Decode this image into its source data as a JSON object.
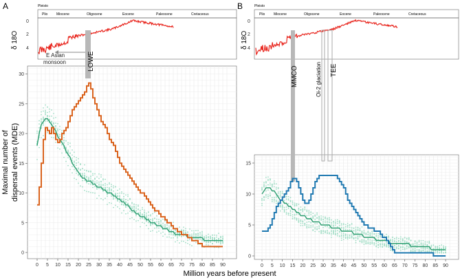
{
  "figure": {
    "panel_a_label": "A",
    "panel_b_label": "B",
    "y_label_line1": "Maximal number of",
    "y_label_line2": "dispersal events (MDE)",
    "x_label": "Million years before present",
    "d18o_label": "δ 18O",
    "epochs": [
      "Pleisto",
      "Plio",
      "Miocene",
      "Oligocene",
      "Eocene",
      "Paleocene",
      "Cretaceous"
    ],
    "annotations_a": {
      "monsoon_line1": "E Asian",
      "monsoon_line2": "monsoon",
      "event": "LOWE"
    },
    "annotations_b": {
      "mmco": "MMCO",
      "oi2": "Oi-2 glaciation",
      "tee": "TEE"
    }
  },
  "chart_data": [
    {
      "type": "line",
      "panel": "A",
      "x": [
        0,
        1,
        2,
        3,
        4,
        5,
        6,
        7,
        8,
        9,
        10,
        11,
        12,
        13,
        14,
        15,
        16,
        17,
        18,
        19,
        20,
        21,
        22,
        23,
        24,
        25,
        26,
        27,
        28,
        29,
        30,
        31,
        32,
        33,
        34,
        35,
        36,
        37,
        38,
        39,
        40,
        41,
        42,
        43,
        44,
        45,
        46,
        47,
        48,
        49,
        50,
        51,
        52,
        53,
        54,
        55,
        56,
        57,
        58,
        59,
        60,
        61,
        62,
        63,
        64,
        65,
        66,
        67,
        68,
        69,
        70,
        71,
        72,
        73,
        74,
        75,
        76,
        77,
        78,
        79,
        80,
        81,
        82,
        83,
        84,
        85,
        86,
        87,
        88,
        89,
        90
      ],
      "series": [
        {
          "values": [
            8,
            11,
            15,
            19,
            21,
            20.5,
            20,
            21,
            20,
            19,
            18.5,
            19,
            20,
            20.5,
            21,
            22,
            23,
            24,
            24.5,
            25,
            25.5,
            26,
            26.5,
            27,
            28,
            28.5,
            27.5,
            26,
            25,
            24,
            23,
            22,
            21.5,
            21,
            20,
            19,
            18.5,
            18,
            17,
            16,
            15,
            14.5,
            14,
            13.5,
            13,
            12.5,
            12,
            11.5,
            11,
            10.5,
            10,
            10,
            9.5,
            9,
            8.5,
            8,
            7.5,
            7,
            7,
            6.5,
            6,
            6,
            5.5,
            5,
            5,
            4.5,
            4,
            4,
            3.5,
            3.5,
            3,
            3,
            3,
            2.5,
            2.5,
            2,
            2,
            2,
            1.5,
            1.5,
            1,
            1,
            1,
            1,
            1,
            1,
            1,
            1,
            1,
            1,
            1
          ]
        },
        {
          "values": [
            18,
            20,
            21.5,
            22,
            22.5,
            22.5,
            22,
            21.5,
            21,
            20.5,
            19.5,
            19,
            18.5,
            18,
            17,
            16.5,
            16,
            15,
            14.5,
            14,
            13.5,
            13,
            12.5,
            12.5,
            12,
            12,
            12,
            11.5,
            11.5,
            11,
            11,
            11,
            10.5,
            10.5,
            10,
            10,
            10,
            9.5,
            9.5,
            9,
            9,
            8.5,
            8.5,
            8,
            8,
            7.5,
            7,
            7,
            6.5,
            6.5,
            6,
            6,
            6,
            5.5,
            5.5,
            5,
            5,
            5,
            4.5,
            4.5,
            4.5,
            4,
            4,
            4,
            3.5,
            3.5,
            3.5,
            3,
            3,
            3,
            3,
            3,
            3,
            2.5,
            2.5,
            2.5,
            2.5,
            2.5,
            2.5,
            2.5,
            2.5,
            2,
            2,
            2,
            2,
            2,
            2,
            2,
            2,
            2,
            2
          ]
        }
      ],
      "xlim": [
        0,
        92
      ],
      "ylim": [
        0,
        31
      ],
      "xticks": [
        0,
        5,
        10,
        15,
        20,
        25,
        30,
        35,
        40,
        45,
        50,
        55,
        60,
        65,
        70,
        75,
        80,
        85,
        90
      ],
      "yticks": [
        0,
        5,
        10,
        15,
        20,
        25,
        30
      ],
      "colors": {
        "empirical": "#d9621c",
        "null_mean": "#2a9d6f",
        "null_reps": "#9fdcc4"
      },
      "grid": true
    },
    {
      "type": "line",
      "panel": "B",
      "x": [
        0,
        1,
        2,
        3,
        4,
        5,
        6,
        7,
        8,
        9,
        10,
        11,
        12,
        13,
        14,
        15,
        16,
        17,
        18,
        19,
        20,
        21,
        22,
        23,
        24,
        25,
        26,
        27,
        28,
        29,
        30,
        31,
        32,
        33,
        34,
        35,
        36,
        37,
        38,
        39,
        40,
        41,
        42,
        43,
        44,
        45,
        46,
        47,
        48,
        49,
        50,
        51,
        52,
        53,
        54,
        55,
        56,
        57,
        58,
        59,
        60,
        61,
        62,
        63,
        64,
        65,
        66,
        67,
        68,
        69,
        70,
        71,
        72,
        73,
        74,
        75,
        76,
        77,
        78,
        79,
        80,
        81,
        82,
        83,
        84,
        85,
        86,
        87,
        88,
        89,
        90
      ],
      "series": [
        {
          "values": [
            4,
            4,
            4,
            4.5,
            5,
            6,
            7,
            8,
            8.5,
            9,
            9.5,
            10,
            10.5,
            11,
            12,
            12.5,
            12.5,
            12,
            11,
            10,
            9,
            8.5,
            8.5,
            9,
            10,
            11,
            12,
            12.5,
            13,
            13,
            13,
            13,
            13,
            13,
            13,
            13,
            13,
            12.5,
            12,
            11.5,
            11,
            10,
            9,
            8.5,
            8,
            7.5,
            7,
            6.5,
            6,
            5.5,
            5,
            5,
            4.5,
            4.5,
            4.5,
            4,
            4,
            4,
            3.5,
            3,
            3,
            2.5,
            2,
            1.5,
            1,
            0.5,
            0.5,
            0.5,
            0.5,
            0.5,
            0.5,
            0.5,
            0.5,
            0.5,
            0.5,
            0.5,
            0.5,
            0.5,
            0.5,
            0.5,
            0.5,
            0.5,
            0.5,
            0.5,
            0,
            0,
            0,
            0,
            0,
            0,
            0
          ]
        },
        {
          "values": [
            10,
            10.5,
            11,
            11,
            11,
            10.5,
            10.5,
            10,
            9.5,
            9,
            9,
            8.5,
            8.5,
            8,
            8,
            7.5,
            7.5,
            7,
            7,
            6.5,
            6.5,
            6.5,
            6,
            6,
            6,
            5.5,
            5.5,
            5.5,
            5.5,
            5,
            5,
            5,
            5,
            5,
            4.5,
            4.5,
            4.5,
            4.5,
            4.5,
            4,
            4,
            4,
            4,
            4,
            4,
            3.5,
            3.5,
            3.5,
            3.5,
            3.5,
            3,
            3,
            3,
            3,
            3,
            3,
            2.5,
            2.5,
            2.5,
            2.5,
            2.5,
            2.5,
            2.5,
            2,
            2,
            2,
            2,
            2,
            2,
            2,
            2,
            2,
            2,
            1.5,
            1.5,
            1.5,
            1.5,
            1.5,
            1.5,
            1.5,
            1.5,
            1.5,
            1.5,
            1,
            1,
            1,
            1,
            1,
            1,
            1,
            1
          ]
        }
      ],
      "xlim": [
        0,
        92
      ],
      "ylim": [
        0,
        16
      ],
      "xticks": [
        0,
        5,
        10,
        15,
        20,
        25,
        30,
        35,
        40,
        45,
        50,
        55,
        60,
        65,
        70,
        75,
        80,
        85,
        90
      ],
      "yticks": [
        0,
        5,
        10,
        15
      ],
      "colors": {
        "empirical": "#1e78b0",
        "null_mean": "#2a9d6f",
        "null_reps": "#9fdcc4"
      },
      "grid": true
    }
  ]
}
